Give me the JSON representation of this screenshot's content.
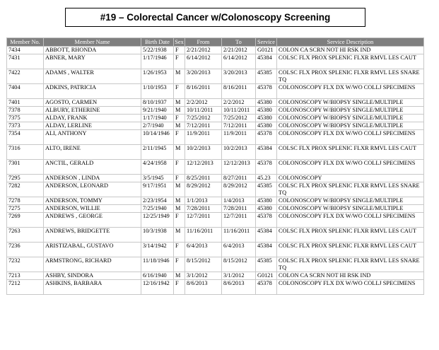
{
  "report": {
    "title": "#19 – Colorectal Cancer w/Colonoscopy Screening"
  },
  "table": {
    "headers": [
      "Member No.",
      "Member Name",
      "Birth Date",
      "Sex",
      "From",
      "To",
      "Service",
      "Service Description"
    ],
    "rows": [
      [
        "7434",
        "ABBOTT, RHONDA",
        "5/22/1938",
        "F",
        "2/21/2012",
        "2/21/2012",
        "G0121",
        "COLON CA SCRN NOT HI RSK IND"
      ],
      [
        "7431",
        "ABNER, MARY",
        "1/17/1946",
        "F",
        "6/14/2012",
        "6/14/2012",
        "45384",
        "COLSC FLX PROX SPLENIC FLXR RMVL LES CAUT"
      ],
      [
        "7422",
        "ADAMS , WALTER",
        "1/26/1953",
        "M",
        "3/20/2013",
        "3/20/2013",
        "45385",
        "COLSC FLX PROX SPLENIC FLXR RMVL LES SNARE TQ"
      ],
      [
        "7404",
        "ADKINS, PATRICIA",
        "1/10/1953",
        "F",
        "8/16/2011",
        "8/16/2011",
        "45378",
        "COLONOSCOPY FLX DX W/WO COLLJ SPECIMENS"
      ],
      [
        "7401",
        "AGOSTO, CARMEN",
        "8/10/1937",
        "M",
        "2/2/2012",
        "2/2/2012",
        "45380",
        "COLONOSCOPY W/BIOPSY SINGLE/MULTIPLE"
      ],
      [
        "7378",
        "ALBURY, ETHERINE",
        "9/21/1940",
        "M",
        "10/11/2011",
        "10/11/2011",
        "45380",
        "COLONOSCOPY W/BIOPSY SINGLE/MULTIPLE"
      ],
      [
        "7375",
        "ALDAY, FRANK",
        "1/17/1940",
        "F",
        "7/25/2012",
        "7/25/2012",
        "45380",
        "COLONOSCOPY W/BIOPSY SINGLE/MULTIPLE"
      ],
      [
        "7373",
        "ALDAY, LERLINE",
        "2/7/1940",
        "M",
        "7/12/2011",
        "7/12/2011",
        "45380",
        "COLONOSCOPY W/BIOPSY SINGLE/MULTIPLE"
      ],
      [
        "7354",
        "ALI, ANTHONY",
        "10/14/1946",
        "F",
        "11/9/2011",
        "11/9/2011",
        "45378",
        "COLONOSCOPY FLX DX W/WO COLLJ SPECIMENS"
      ],
      [
        "7316",
        "ALTO, IRENE",
        "2/11/1945",
        "M",
        "10/2/2013",
        "10/2/2013",
        "45384",
        "COLSC FLX PROX SPLENIC FLXR RMVL LES CAUT"
      ],
      [
        "7301",
        "ANCTIL, GERALD",
        "4/24/1958",
        "F",
        "12/12/2013",
        "12/12/2013",
        "45378",
        "COLONOSCOPY FLX DX W/WO COLLJ SPECIMENS"
      ],
      [
        "7295",
        "ANDERSON , LINDA",
        "3/5/1945",
        "F",
        "8/25/2011",
        "8/27/2011",
        "45.23",
        "COLONOSCOPY"
      ],
      [
        "7282",
        "ANDERSON, LEONARD",
        "9/17/1951",
        "M",
        "8/29/2012",
        "8/29/2012",
        "45385",
        "COLSC FLX PROX SPLENIC FLXR RMVL LES SNARE TQ"
      ],
      [
        "7278",
        "ANDERSON, TOMMY",
        "2/23/1954",
        "M",
        "1/1/2013",
        "1/4/2013",
        "45380",
        "COLONOSCOPY W/BIOPSY SINGLE/MULTIPLE"
      ],
      [
        "7275",
        "ANDERSON, WILLIE",
        "7/25/1940",
        "M",
        "7/28/2011",
        "7/28/2011",
        "45380",
        "COLONOSCOPY W/BIOPSY SINGLE/MULTIPLE"
      ],
      [
        "7269",
        "ANDREWS , GEORGE",
        "12/25/1949",
        "F",
        "12/7/2011",
        "12/7/2011",
        "45378",
        "COLONOSCOPY FLX DX W/WO COLLJ SPECIMENS"
      ],
      [
        "7263",
        "ANDREWS, BRIDGETTE",
        "10/3/1938",
        "M",
        "11/16/2011",
        "11/16/2011",
        "45384",
        "COLSC FLX PROX SPLENIC FLXR RMVL LES CAUT"
      ],
      [
        "7236",
        "ARISTIZABAL, GUSTAVO",
        "3/14/1942",
        "F",
        "6/4/2013",
        "6/4/2013",
        "45384",
        "COLSC FLX PROX SPLENIC FLXR RMVL LES CAUT"
      ],
      [
        "7232",
        "ARMSTRONG, RICHARD",
        "11/18/1946",
        "F",
        "8/15/2012",
        "8/15/2012",
        "45385",
        "COLSC FLX PROX SPLENIC FLXR RMVL LES SNARE TQ"
      ],
      [
        "7213",
        "ASHBY, SINDORA",
        "6/16/1940",
        "M",
        "3/1/2012",
        "3/1/2012",
        "G0121",
        "COLON CA SCRN NOT HI RSK IND"
      ],
      [
        "7212",
        "ASHKINS, BARBARA",
        "12/16/1942",
        "F",
        "8/6/2013",
        "8/6/2013",
        "45378",
        "COLONOSCOPY FLX DX W/WO COLLJ SPECIMENS"
      ]
    ]
  }
}
